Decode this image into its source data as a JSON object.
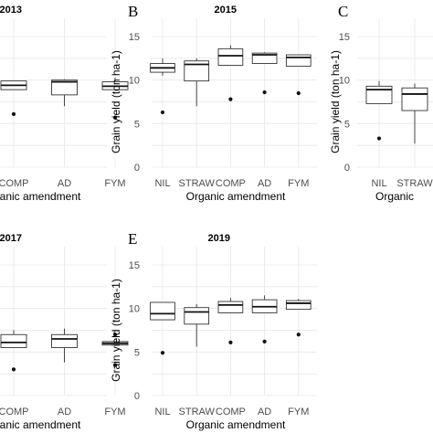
{
  "chart_data": [
    {
      "type": "boxplot",
      "panel_label": "",
      "title": "2013",
      "xlabel": "Organic amendment",
      "ylabel": "",
      "ylim": [
        0,
        15
      ],
      "yticks": [],
      "categories": [
        "COMP",
        "AD",
        "FYM"
      ],
      "boxes": [
        {
          "q1": 8.9,
          "median": 9.4,
          "q3": 9.9,
          "lower": 8.9,
          "upper": 9.9,
          "outliers": [
            6.1
          ]
        },
        {
          "q1": 8.3,
          "median": 9.8,
          "q3": 10.0,
          "lower": 7.0,
          "upper": 10.1,
          "outliers": []
        },
        {
          "q1": 8.9,
          "median": 9.3,
          "q3": 9.8,
          "lower": 8.9,
          "upper": 10.3,
          "outliers": [
            5.7
          ]
        }
      ]
    },
    {
      "type": "boxplot",
      "panel_label": "B",
      "title": "2015",
      "xlabel": "Organic amendment",
      "ylabel": "Grain yield (ton ha-1)",
      "ylim": [
        0,
        15
      ],
      "yticks": [
        "0",
        "5",
        "10",
        "15"
      ],
      "categories": [
        "NIL",
        "STRAW",
        "COMP",
        "AD",
        "FYM"
      ],
      "boxes": [
        {
          "q1": 10.9,
          "median": 11.4,
          "q3": 11.9,
          "lower": 10.5,
          "upper": 12.5,
          "outliers": [
            6.3
          ]
        },
        {
          "q1": 9.9,
          "median": 11.8,
          "q3": 12.2,
          "lower": 7.0,
          "upper": 12.5,
          "outliers": []
        },
        {
          "q1": 11.7,
          "median": 12.8,
          "q3": 13.6,
          "lower": 11.7,
          "upper": 14.0,
          "outliers": [
            7.8
          ]
        },
        {
          "q1": 11.9,
          "median": 12.9,
          "q3": 13.1,
          "lower": 11.9,
          "upper": 13.2,
          "outliers": [
            8.6
          ]
        },
        {
          "q1": 11.6,
          "median": 12.6,
          "q3": 12.9,
          "lower": 11.6,
          "upper": 12.9,
          "outliers": [
            8.5
          ]
        }
      ]
    },
    {
      "type": "boxplot",
      "panel_label": "C",
      "title": "",
      "xlabel": "Organic",
      "ylabel": "Grain yield (ton ha-1)",
      "ylim": [
        0,
        15
      ],
      "yticks": [
        "0",
        "5",
        "10",
        "15"
      ],
      "categories": [
        "NIL",
        "STRAW"
      ],
      "boxes": [
        {
          "q1": 7.3,
          "median": 8.9,
          "q3": 9.3,
          "lower": 7.3,
          "upper": 9.9,
          "outliers": [
            3.3
          ]
        },
        {
          "q1": 6.5,
          "median": 8.4,
          "q3": 9.1,
          "lower": 2.7,
          "upper": 9.6,
          "outliers": []
        }
      ]
    },
    {
      "type": "boxplot",
      "panel_label": "",
      "title": "2017",
      "xlabel": "Organic amendment",
      "ylabel": "",
      "ylim": [
        0,
        15
      ],
      "yticks": [],
      "categories": [
        "COMP",
        "AD",
        "FYM"
      ],
      "boxes": [
        {
          "q1": 5.5,
          "median": 6.1,
          "q3": 7.0,
          "lower": 5.5,
          "upper": 7.5,
          "outliers": [
            3.0
          ]
        },
        {
          "q1": 5.5,
          "median": 6.5,
          "q3": 7.0,
          "lower": 3.8,
          "upper": 7.7,
          "outliers": []
        },
        {
          "q1": 5.8,
          "median": 6.0,
          "q3": 6.2,
          "lower": 5.8,
          "upper": 6.2,
          "outliers": [
            7.0,
            3.5
          ]
        }
      ]
    },
    {
      "type": "boxplot",
      "panel_label": "E",
      "title": "2019",
      "xlabel": "Organic amendment",
      "ylabel": "Grain yield (ton ha-1)",
      "ylim": [
        0,
        15
      ],
      "yticks": [
        "0",
        "5",
        "10",
        "15"
      ],
      "categories": [
        "NIL",
        "STRAW",
        "COMP",
        "AD",
        "FYM"
      ],
      "boxes": [
        {
          "q1": 8.7,
          "median": 9.4,
          "q3": 10.7,
          "lower": 8.7,
          "upper": 10.7,
          "outliers": [
            4.9
          ]
        },
        {
          "q1": 8.2,
          "median": 9.6,
          "q3": 10.1,
          "lower": 5.6,
          "upper": 10.5,
          "outliers": []
        },
        {
          "q1": 9.5,
          "median": 10.4,
          "q3": 10.8,
          "lower": 9.5,
          "upper": 11.2,
          "outliers": [
            6.1
          ]
        },
        {
          "q1": 9.5,
          "median": 10.2,
          "q3": 11.0,
          "lower": 9.5,
          "upper": 11.5,
          "outliers": [
            6.2
          ]
        },
        {
          "q1": 9.9,
          "median": 10.6,
          "q3": 10.9,
          "lower": 9.9,
          "upper": 11.1,
          "outliers": [
            7.0
          ]
        }
      ]
    }
  ]
}
